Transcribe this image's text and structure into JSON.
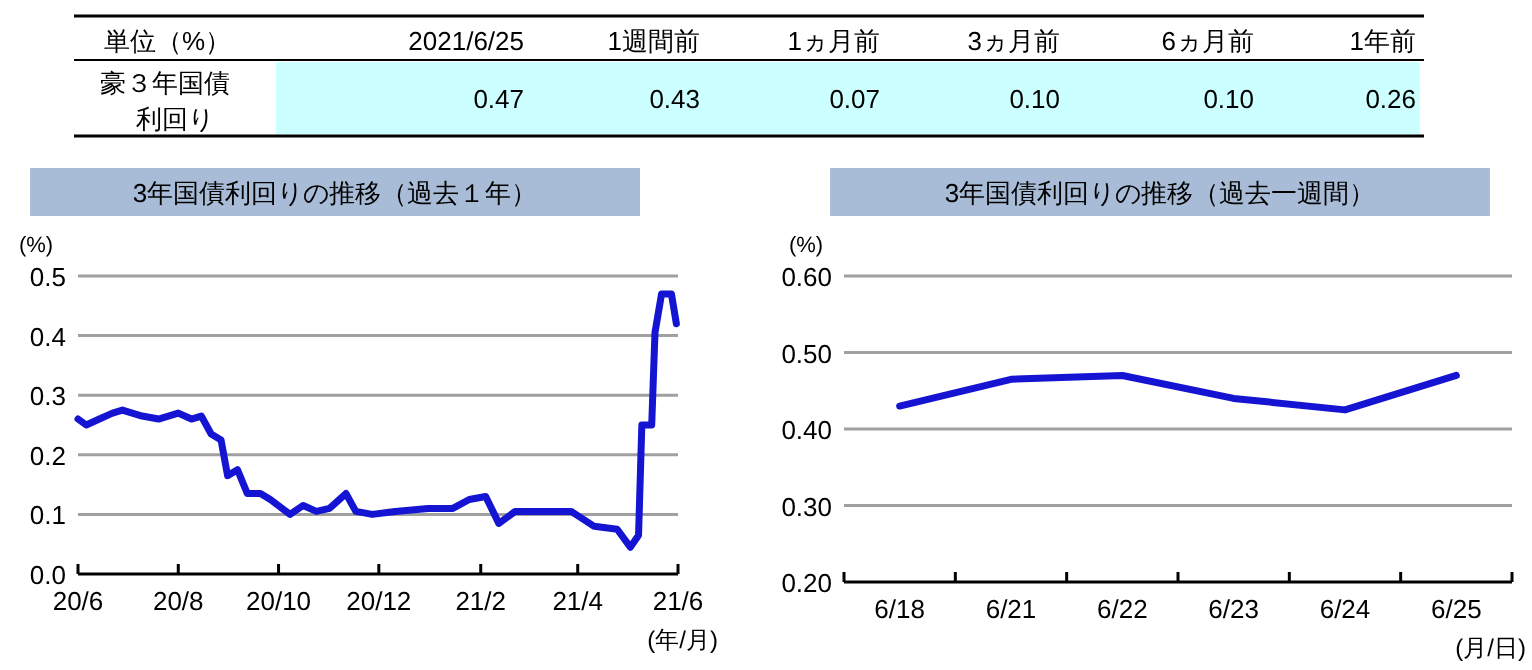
{
  "chart_data": [
    {
      "type": "other",
      "title": "単位（%）",
      "ylabel": "豪３年国債利回り",
      "categories": [
        "2021/6/25",
        "1週間前",
        "1ヵ月前",
        "3ヵ月前",
        "6ヵ月前",
        "1年前"
      ],
      "values": [
        0.47,
        0.43,
        0.07,
        0.1,
        0.1,
        0.26
      ],
      "value_labels": [
        "0.47",
        "0.43",
        "0.07",
        "0.10",
        "0.10",
        "0.26"
      ],
      "color": "#ccffff"
    },
    {
      "type": "line",
      "title": "3年国債利回りの推移（過去１年）",
      "ylabel": "(%)",
      "xlabel": "(年/月)",
      "grid": "y",
      "line_style": "solid",
      "xlim": [
        "2020-06-25",
        "2021-06-25"
      ],
      "xticks": [
        {
          "value": "2020-06-25",
          "label": "20/6"
        },
        {
          "value": "2020-08-25",
          "label": "20/8"
        },
        {
          "value": "2020-10-25",
          "label": "20/10"
        },
        {
          "value": "2020-12-25",
          "label": "20/12"
        },
        {
          "value": "2021-02-25",
          "label": "21/2"
        },
        {
          "value": "2021-04-25",
          "label": "21/4"
        },
        {
          "value": "2021-06-25",
          "label": "21/6"
        }
      ],
      "ylim": [
        0,
        0.5
      ],
      "yticks": [
        {
          "value": 0,
          "label": "0.0"
        },
        0.1,
        0.2,
        0.3,
        0.4,
        0.5
      ],
      "series": [
        {
          "color": "#1414d2",
          "x": [
            "2020-06-25",
            "2020-06-30",
            "2020-07-08",
            "2020-07-16",
            "2020-07-22",
            "2020-07-28",
            "2020-08-03",
            "2020-08-13",
            "2020-08-25",
            "2020-09-02",
            "2020-09-08",
            "2020-09-14",
            "2020-09-20",
            "2020-09-24",
            "2020-09-30",
            "2020-10-06",
            "2020-10-14",
            "2020-10-20",
            "2020-11-01",
            "2020-11-09",
            "2020-11-17",
            "2020-11-25",
            "2020-12-05",
            "2020-12-11",
            "2020-12-21",
            "2021-01-04",
            "2021-01-24",
            "2021-02-08",
            "2021-02-18",
            "2021-02-28",
            "2021-03-08",
            "2021-03-18",
            "2021-04-01",
            "2021-04-21",
            "2021-05-05",
            "2021-05-19",
            "2021-05-27",
            "2021-06-01",
            "2021-06-03",
            "2021-06-09",
            "2021-06-11",
            "2021-06-15",
            "2021-06-21",
            "2021-06-24"
          ],
          "values": [
            0.26,
            0.25,
            0.26,
            0.27,
            0.275,
            0.27,
            0.265,
            0.26,
            0.27,
            0.26,
            0.265,
            0.235,
            0.225,
            0.165,
            0.175,
            0.135,
            0.135,
            0.125,
            0.1,
            0.115,
            0.105,
            0.11,
            0.135,
            0.105,
            0.1,
            0.105,
            0.11,
            0.11,
            0.125,
            0.13,
            0.085,
            0.105,
            0.105,
            0.105,
            0.08,
            0.075,
            0.045,
            0.065,
            0.25,
            0.25,
            0.405,
            0.47,
            0.47,
            0.42
          ]
        }
      ]
    },
    {
      "type": "line",
      "title": "3年国債利回りの推移（過去一週間）",
      "ylabel": "(%)",
      "xlabel": "(月/日)",
      "grid": "y",
      "line_style": "solid",
      "categories": [
        "6/18",
        "6/21",
        "6/22",
        "6/23",
        "6/24",
        "6/25"
      ],
      "ylim": [
        0.2,
        0.6
      ],
      "yticks": [
        {
          "value": 0.2,
          "label": "0.20"
        },
        {
          "value": 0.3,
          "label": "0.30"
        },
        {
          "value": 0.4,
          "label": "0.40"
        },
        {
          "value": 0.5,
          "label": "0.50"
        },
        {
          "value": 0.6,
          "label": "0.60"
        }
      ],
      "series": [
        {
          "color": "#1414d2",
          "values": [
            0.43,
            0.465,
            0.47,
            0.44,
            0.425,
            0.47
          ]
        }
      ]
    }
  ]
}
